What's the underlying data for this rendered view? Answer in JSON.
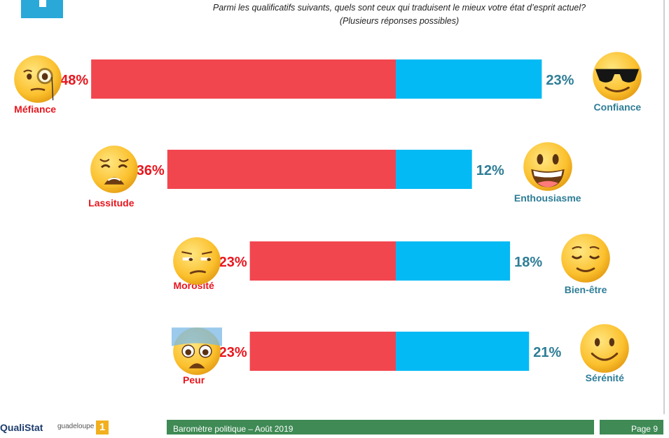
{
  "question": {
    "line1": "Parmi les qualificatifs suivants, quels sont ceux qui traduisent le mieux votre état d’esprit actuel?",
    "line2": "(Plusieurs réponses possibles)"
  },
  "chart_data": {
    "type": "bar",
    "title": "",
    "xlabel": "",
    "ylabel": "",
    "negative_color": "#f2464f",
    "positive_color": "#04baf4",
    "negative_label_color": "#e8161e",
    "positive_label_color": "#2e7d96",
    "rows": [
      {
        "neg_label": "Méfiance",
        "neg_value": 48,
        "neg_text": "48%",
        "neg_icon": "monocle-face-icon",
        "pos_label": "Confiance",
        "pos_value": 23,
        "pos_text": "23%",
        "pos_icon": "sunglasses-face-icon"
      },
      {
        "neg_label": "Lassitude",
        "neg_value": 36,
        "neg_text": "36%",
        "neg_icon": "weary-face-icon",
        "pos_label": "Enthousiasme",
        "pos_value": 12,
        "pos_text": "12%",
        "pos_icon": "grinning-face-icon"
      },
      {
        "neg_label": "Morosité",
        "neg_value": 23,
        "neg_text": "23%",
        "neg_icon": "unamused-face-icon",
        "pos_label": "Bien-être",
        "pos_value": 18,
        "pos_text": "18%",
        "pos_icon": "relieved-face-icon"
      },
      {
        "neg_label": "Peur",
        "neg_value": 23,
        "neg_text": "23%",
        "neg_icon": "fearful-face-icon",
        "pos_label": "Sérénité",
        "pos_value": 21,
        "pos_text": "21%",
        "pos_icon": "smiling-face-icon"
      }
    ]
  },
  "footer": {
    "brand": "QualiStat",
    "partner": "guadeloupe",
    "partner_mark": "1",
    "report": "Baromètre politique – Août 2019",
    "page": "Page 9"
  }
}
